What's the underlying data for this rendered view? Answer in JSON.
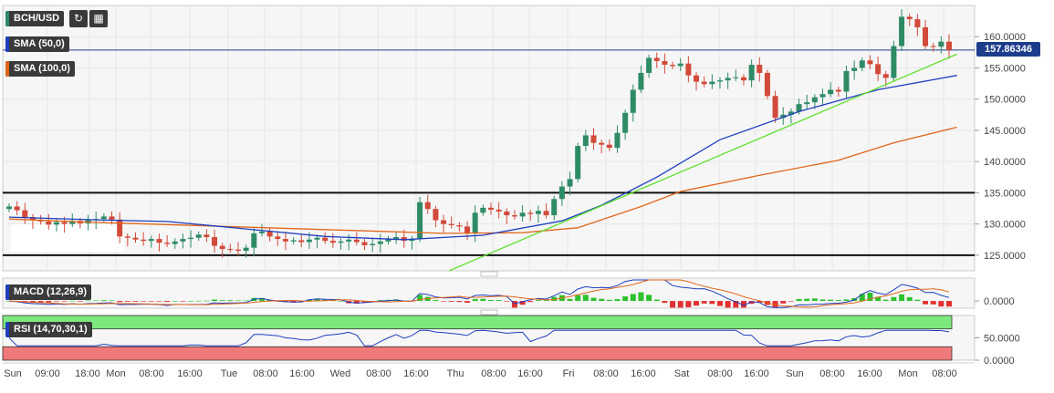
{
  "symbol": "BCH/USD",
  "toolbar": {
    "refresh_icon": "refresh-icon",
    "calendar_icon": "calendar-icon"
  },
  "indicators": {
    "sma50": {
      "label": "SMA (50,0)",
      "color": "#1f3fbf"
    },
    "sma100": {
      "label": "SMA (100,0)",
      "color": "#e0661a"
    },
    "macd": {
      "label": "MACD (12,26,9)"
    },
    "rsi": {
      "label": "RSI (14,70,30,1)"
    }
  },
  "current_price": {
    "value": 157.86346,
    "label": "157.86346"
  },
  "chart_data": {
    "type": "candlestick",
    "x_ticks": [
      "Sun",
      "09:00",
      "18:00",
      "Mon",
      "08:00",
      "16:00",
      "Tue",
      "08:00",
      "16:00",
      "Wed",
      "08:00",
      "16:00",
      "Thu",
      "08:00",
      "16:00",
      "Fri",
      "08:00",
      "16:00",
      "Sat",
      "08:00",
      "16:00",
      "Sun",
      "08:00",
      "16:00",
      "Mon",
      "08:00"
    ],
    "price_axis": {
      "ylim": [
        122.5,
        165
      ],
      "ticks": [
        125,
        130,
        135,
        140,
        145,
        150,
        155,
        160
      ],
      "tick_labels": [
        "125.0000",
        "130.0000",
        "135.0000",
        "140.0000",
        "145.0000",
        "150.0000",
        "155.0000",
        "160.0000"
      ]
    },
    "horizontal_lines": [
      135,
      125
    ],
    "price_line": 157.86346,
    "closes": [
      132.8,
      132.2,
      131.1,
      130.6,
      130.4,
      129.9,
      130.3,
      130.0,
      130.5,
      130.1,
      130.6,
      130.8,
      131.2,
      130.7,
      128.0,
      127.8,
      127.5,
      127.3,
      127.6,
      127.0,
      126.8,
      127.2,
      127.6,
      127.8,
      128.3,
      127.9,
      126.5,
      126.0,
      125.9,
      125.7,
      126.2,
      128.5,
      128.8,
      128.0,
      127.6,
      127.2,
      127.4,
      127.1,
      127.5,
      127.8,
      127.3,
      127.0,
      127.2,
      127.5,
      127.1,
      126.6,
      126.8,
      127.2,
      127.6,
      127.9,
      127.3,
      127.6,
      133.5,
      132.4,
      130.6,
      130.0,
      129.8,
      129.6,
      128.5,
      131.8,
      132.6,
      132.3,
      132.0,
      131.4,
      131.2,
      131.8,
      131.6,
      132.1,
      131.4,
      134.0,
      136.0,
      137.2,
      142.5,
      144.2,
      143.0,
      142.7,
      142.2,
      144.6,
      147.8,
      151.5,
      154.2,
      156.6,
      156.1,
      155.5,
      155.3,
      155.7,
      153.8,
      152.8,
      152.4,
      152.8,
      153.0,
      153.4,
      153.5,
      153.0,
      155.5,
      154.2,
      150.5,
      147.0,
      147.5,
      148.0,
      149.2,
      149.5,
      150.3,
      150.8,
      151.5,
      151.2,
      154.5,
      155.0,
      156.2,
      155.6,
      154.0,
      153.4,
      158.5,
      163.2,
      162.8,
      161.5,
      158.5,
      158.4,
      159.2,
      157.86
    ],
    "sma50": {
      "name": "SMA (50,0)",
      "values": [
        [
          0,
          131.1
        ],
        [
          10,
          130.7
        ],
        [
          20,
          130.4
        ],
        [
          30,
          129.2
        ],
        [
          40,
          128.0
        ],
        [
          50,
          127.5
        ],
        [
          60,
          128.2
        ],
        [
          70,
          130.5
        ],
        [
          75,
          133.0
        ],
        [
          82,
          137.5
        ],
        [
          90,
          143.5
        ],
        [
          100,
          148.0
        ],
        [
          110,
          151.5
        ],
        [
          120,
          153.8
        ]
      ]
    },
    "sma100": {
      "name": "SMA (100,0)",
      "values": [
        [
          0,
          130.8
        ],
        [
          10,
          130.3
        ],
        [
          25,
          129.7
        ],
        [
          40,
          129.1
        ],
        [
          55,
          128.5
        ],
        [
          65,
          128.6
        ],
        [
          72,
          129.4
        ],
        [
          80,
          132.8
        ],
        [
          85,
          135.2
        ],
        [
          95,
          137.8
        ],
        [
          105,
          140.2
        ],
        [
          112,
          143.0
        ],
        [
          120,
          145.5
        ]
      ]
    },
    "trendline": [
      [
        55.7,
        122.5
      ],
      [
        120,
        157.2
      ]
    ],
    "macd": {
      "ylim": [
        -1.2,
        3.8
      ],
      "tick": 0,
      "tick_label": "0.0000",
      "histogram_color_pos": "#2ec12e",
      "histogram_color_neg": "#e23030"
    },
    "rsi": {
      "ylim": [
        0,
        100
      ],
      "ticks": [
        0,
        50
      ],
      "tick_labels": [
        "0.0000",
        "50.0000"
      ],
      "overbought": 70,
      "oversold": 30,
      "zone_color_hi": "#7ee87e",
      "zone_color_lo": "#f07a7a"
    }
  },
  "colors": {
    "up": "#2e8b66",
    "down": "#d24a3a",
    "grid": "#e6e6e6",
    "axis_text": "#444444"
  }
}
